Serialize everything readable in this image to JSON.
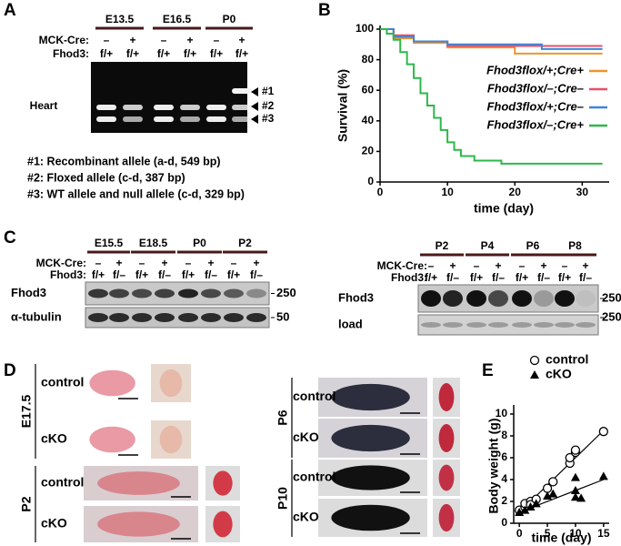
{
  "panels": {
    "A": {
      "label": "A",
      "stages": [
        "E13.5",
        "E16.5",
        "P0"
      ],
      "mck_cre": {
        "label": "MCK-Cre:",
        "values": [
          "–",
          "+",
          "–",
          "+",
          "–",
          "+"
        ]
      },
      "fhod3": {
        "label": "Fhod3:",
        "values": [
          "f/+",
          "f/+",
          "f/+",
          "f/+",
          "f/+",
          "f/+"
        ]
      },
      "tissue": "Heart",
      "bands": [
        "#1",
        "#2",
        "#3"
      ],
      "notes": [
        "#1: Recombinant allele (a-d, 549 bp)",
        "#2: Floxed allele (c-d, 387 bp)",
        "#3: WT allele and null allele (c-d, 329 bp)"
      ]
    },
    "B": {
      "label": "B"
    },
    "C": {
      "label": "C",
      "left": {
        "stages": [
          "E15.5",
          "E18.5",
          "P0",
          "P2"
        ],
        "mck_cre": {
          "label": "MCK-Cre:",
          "values": [
            "–",
            "+",
            "–",
            "+",
            "–",
            "+",
            "–",
            "+"
          ]
        },
        "fhod3": {
          "label": "Fhod3:",
          "values": [
            "f/+",
            "f/–",
            "f/+",
            "f/–",
            "f/+",
            "f/–",
            "f/+",
            "f/–"
          ]
        },
        "rows": [
          "Fhod3",
          "α-tubulin"
        ],
        "markers": [
          250,
          50
        ]
      },
      "right": {
        "stages": [
          "P2",
          "P4",
          "P6",
          "P8"
        ],
        "mck_cre": {
          "label": "MCK-Cre:",
          "values": [
            "–",
            "+",
            "–",
            "+",
            "–",
            "+",
            "–",
            "+"
          ]
        },
        "fhod3": {
          "label": "Fhod3:",
          "values": [
            "f/+",
            "f/–",
            "f/+",
            "f/–",
            "f/+",
            "f/–",
            "f/+",
            "f/–"
          ]
        },
        "rows": [
          "Fhod3",
          "load"
        ],
        "markers": [
          250,
          250
        ]
      }
    },
    "D": {
      "label": "D",
      "groups": [
        {
          "stage": "E17.5",
          "rows": [
            "control",
            "cKO"
          ]
        },
        {
          "stage": "P2",
          "rows": [
            "control",
            "cKO"
          ]
        },
        {
          "stage": "P6",
          "rows": [
            "control",
            "cKO"
          ]
        },
        {
          "stage": "P10",
          "rows": [
            "control",
            "cKO"
          ]
        }
      ]
    },
    "E": {
      "label": "E"
    }
  },
  "chart_data": [
    {
      "type": "line",
      "xlabel": "time (day)",
      "ylabel": "Survival (%)",
      "xlim": [
        0,
        34
      ],
      "ylim": [
        0,
        100
      ],
      "xticks": [
        0,
        10,
        20,
        30
      ],
      "yticks": [
        0,
        20,
        40,
        60,
        80,
        100
      ],
      "legend": "right",
      "series": [
        {
          "name": "Fhod3flox/+;Cre+",
          "color": "#f0922e",
          "x": [
            0,
            2,
            2,
            5,
            5,
            10,
            10,
            20,
            20,
            33
          ],
          "values": [
            100,
            100,
            94,
            94,
            91,
            91,
            88,
            88,
            84,
            84
          ]
        },
        {
          "name": "Fhod3flox/–;Cre–",
          "color": "#e8506a",
          "x": [
            0,
            2,
            2,
            5,
            5,
            10,
            10,
            33
          ],
          "values": [
            100,
            100,
            96,
            96,
            92,
            92,
            89,
            89
          ]
        },
        {
          "name": "Fhod3flox/+;Cre–",
          "color": "#3d86d8",
          "x": [
            0,
            2,
            2,
            5,
            5,
            10,
            10,
            24,
            24,
            33
          ],
          "values": [
            100,
            100,
            95,
            95,
            92,
            92,
            90,
            90,
            87,
            87
          ]
        },
        {
          "name": "Fhod3flox/–;Cre+",
          "color": "#2db84a",
          "x": [
            0,
            1,
            1,
            2,
            2,
            3,
            3,
            4,
            4,
            5,
            5,
            6,
            6,
            7,
            7,
            8,
            8,
            9,
            9,
            10,
            10,
            11,
            11,
            12,
            12,
            14,
            14,
            18,
            18,
            33
          ],
          "values": [
            100,
            100,
            97,
            97,
            93,
            93,
            85,
            85,
            77,
            77,
            68,
            68,
            58,
            58,
            50,
            50,
            42,
            42,
            34,
            34,
            26,
            26,
            21,
            21,
            17,
            17,
            14,
            14,
            12,
            12
          ]
        }
      ]
    },
    {
      "type": "scatter",
      "xlabel": "time (day)",
      "ylabel": "Body weight (g)",
      "xlim": [
        -1,
        16
      ],
      "ylim": [
        0,
        10.5
      ],
      "xticks": [
        0,
        5,
        10,
        15
      ],
      "yticks": [
        0,
        2,
        4,
        6,
        8,
        10
      ],
      "legend": "top",
      "series": [
        {
          "name": "control",
          "marker": "circle",
          "color": "#000000",
          "x": [
            0,
            1,
            1,
            2,
            2,
            3,
            5,
            6,
            9,
            9,
            10,
            10,
            15
          ],
          "values": [
            1.2,
            1.5,
            1.8,
            2.0,
            1.7,
            2.2,
            3.2,
            3.8,
            5.5,
            6.0,
            6.5,
            6.7,
            8.4
          ],
          "fit": {
            "x": [
              0,
              15
            ],
            "values": [
              1.0,
              8.5
            ]
          }
        },
        {
          "name": "cKO",
          "marker": "triangle",
          "color": "#000000",
          "x": [
            0,
            1,
            2,
            3,
            5,
            6,
            10,
            10,
            10,
            11,
            15
          ],
          "values": [
            1.0,
            1.2,
            1.5,
            1.8,
            2.5,
            2.7,
            4.2,
            3.0,
            2.4,
            2.3,
            4.3
          ],
          "fit": {
            "x": [
              0,
              15
            ],
            "values": [
              1.0,
              4.0
            ]
          }
        }
      ]
    }
  ]
}
